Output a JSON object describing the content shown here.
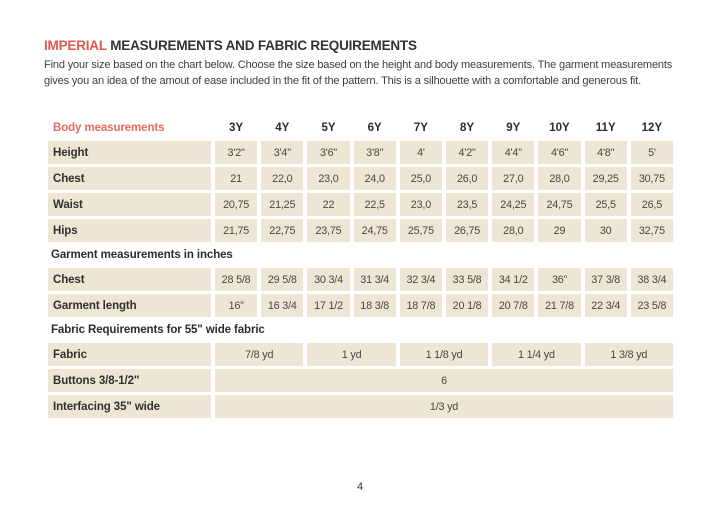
{
  "page": {
    "title_highlight": "IMPERIAL",
    "title_rest": " MEASUREMENTS AND FABRIC REQUIREMENTS",
    "intro_line1": "Find your size based on the chart below. Choose the size based on the height and body measurements. The garment measurements",
    "intro_line2": "gives you an idea of the amout of ease included in the fit of the pattern. This is a silhouette with a comfortable and generous fit.",
    "page_number": "4"
  },
  "colors": {
    "accent_red": "#e2574f",
    "cell_beige": "#eee6d4",
    "text_dark": "#333333"
  },
  "table": {
    "header": {
      "label": "Body measurements",
      "sizes": [
        "3Y",
        "4Y",
        "5Y",
        "6Y",
        "7Y",
        "8Y",
        "9Y",
        "10Y",
        "11Y",
        "12Y"
      ]
    },
    "body_rows": [
      {
        "label": "Height",
        "values": [
          "3'2\"",
          "3'4\"",
          "3'6\"",
          "3'8\"",
          "4'",
          "4'2\"",
          "4'4\"",
          "4'6\"",
          "4'8\"",
          "5'"
        ]
      },
      {
        "label": "Chest",
        "values": [
          "21",
          "22,0",
          "23,0",
          "24,0",
          "25,0",
          "26,0",
          "27,0",
          "28,0",
          "29,25",
          "30,75"
        ]
      },
      {
        "label": "Waist",
        "values": [
          "20,75",
          "21,25",
          "22",
          "22,5",
          "23,0",
          "23,5",
          "24,25",
          "24,75",
          "25,5",
          "26,5"
        ]
      },
      {
        "label": "Hips",
        "values": [
          "21,75",
          "22,75",
          "23,75",
          "24,75",
          "25,75",
          "26,75",
          "28,0",
          "29",
          "30",
          "32,75"
        ]
      }
    ],
    "garment_section_label": "Garment measurements in inches",
    "garment_rows": [
      {
        "label": "Chest",
        "values": [
          "28 5/8",
          "29 5/8",
          "30 3/4",
          "31 3/4",
          "32 3/4",
          "33 5/8",
          "34 1/2",
          "36”",
          "37 3/8",
          "38 3/4"
        ]
      },
      {
        "label": "Garment length",
        "values": [
          "16”",
          "16 3/4",
          "17 1/2",
          "18 3/8",
          "18 7/8",
          "20 1/8",
          "20 7/8",
          "21 7/8",
          "22 3/4",
          "23 5/8"
        ]
      }
    ],
    "fabric_section_label": "Fabric Requirements for  55\" wide fabric",
    "fabric_rows": [
      {
        "label": "Fabric",
        "span": 2,
        "values": [
          "7/8 yd",
          "1 yd",
          "1 1/8 yd",
          "1 1/4 yd",
          "1 3/8 yd"
        ]
      },
      {
        "label": "Buttons 3/8-1/2\"",
        "span": 10,
        "values": [
          "6"
        ]
      },
      {
        "label": "Interfacing  35\" wide",
        "span": 10,
        "values": [
          "1/3 yd"
        ]
      }
    ]
  }
}
